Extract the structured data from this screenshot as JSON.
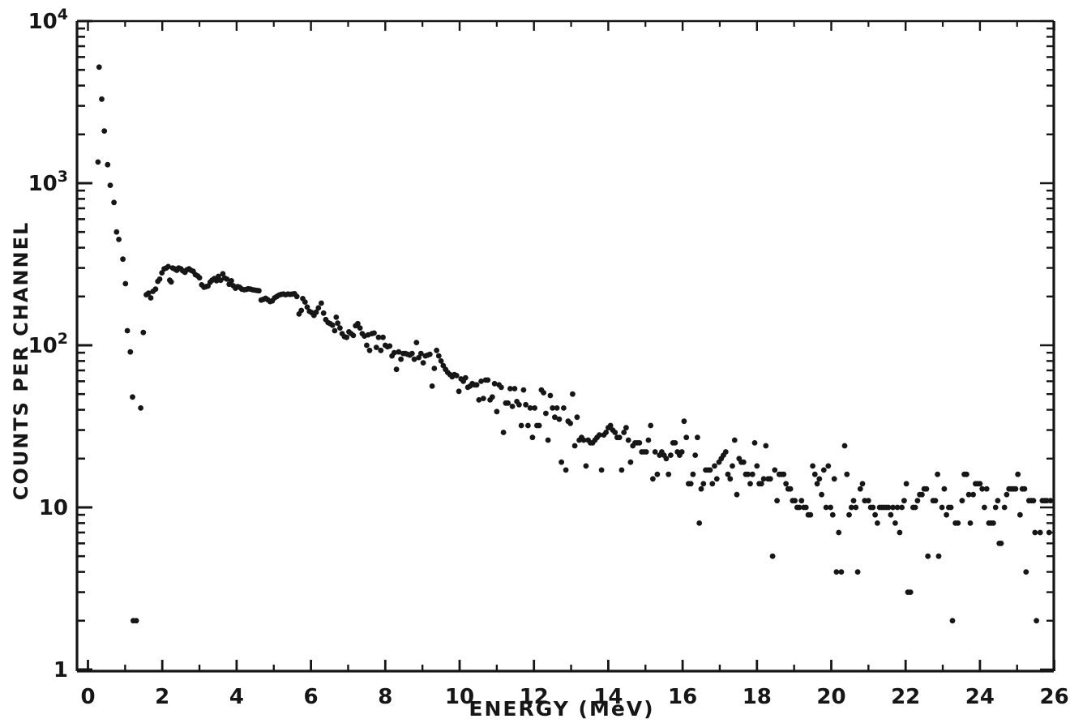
{
  "figure": {
    "background": "#ffffff",
    "ink_color": "#161616"
  },
  "chart_data": {
    "type": "scatter",
    "title": "",
    "xlabel": "ENERGY (MeV)",
    "ylabel": "COUNTS PER CHANNEL",
    "legend": null,
    "grid": false,
    "marker": {
      "shape": "dot",
      "color": "#161616",
      "radius": 3.4
    },
    "x_axis": {
      "min": -0.3,
      "max": 26.1,
      "scale": "linear",
      "major_tick_values": [
        0,
        2,
        4,
        6,
        8,
        10,
        12,
        14,
        16,
        18,
        20,
        22,
        24,
        26
      ],
      "major_tick_labels": [
        "0",
        "2",
        "4",
        "6",
        "8",
        "10",
        "12",
        "14",
        "16",
        "18",
        "20",
        "22",
        "24",
        "26"
      ],
      "minor_tick_values": [
        1,
        3,
        5,
        7,
        9,
        11,
        13,
        15,
        17,
        19,
        21,
        23,
        25
      ]
    },
    "y_axis": {
      "min": 1,
      "max": 10000,
      "scale": "log",
      "major_ticks": [
        {
          "value": 1,
          "base": "1",
          "exponent": ""
        },
        {
          "value": 10,
          "base": "10",
          "exponent": ""
        },
        {
          "value": 100,
          "base": "10",
          "exponent": "2"
        },
        {
          "value": 1000,
          "base": "10",
          "exponent": "3"
        },
        {
          "value": 10000,
          "base": "10",
          "exponent": "4"
        }
      ],
      "minor_mantissas": [
        2,
        3,
        4,
        5,
        6,
        7,
        8,
        9
      ]
    },
    "points": [
      [
        0.27,
        1350
      ],
      [
        0.3,
        5200
      ],
      [
        0.37,
        3300
      ],
      [
        0.44,
        2100
      ],
      [
        0.53,
        1300
      ],
      [
        0.6,
        970
      ],
      [
        0.7,
        760
      ],
      [
        0.77,
        500
      ],
      [
        0.83,
        450
      ],
      [
        0.94,
        340
      ],
      [
        1.01,
        240
      ],
      [
        1.06,
        123
      ],
      [
        1.14,
        91
      ],
      [
        1.2,
        48
      ],
      [
        1.22,
        2
      ],
      [
        1.3,
        2
      ],
      [
        1.42,
        41
      ],
      [
        1.49,
        120
      ],
      [
        1.57,
        205
      ],
      [
        1.63,
        210
      ],
      [
        1.69,
        196
      ],
      [
        1.75,
        215
      ],
      [
        1.82,
        222
      ],
      [
        1.88,
        248
      ],
      [
        1.93,
        256
      ],
      [
        1.99,
        280
      ],
      [
        2.05,
        296
      ],
      [
        2.11,
        300
      ],
      [
        2.16,
        306
      ],
      [
        2.2,
        252
      ],
      [
        2.24,
        246
      ],
      [
        2.28,
        300
      ],
      [
        2.33,
        296
      ],
      [
        2.39,
        290
      ],
      [
        2.44,
        300
      ],
      [
        2.5,
        296
      ],
      [
        2.55,
        288
      ],
      [
        2.61,
        282
      ],
      [
        2.66,
        292
      ],
      [
        2.72,
        296
      ],
      [
        2.77,
        290
      ],
      [
        2.83,
        286
      ],
      [
        2.89,
        273
      ],
      [
        2.95,
        268
      ],
      [
        3.0,
        261
      ],
      [
        3.06,
        236
      ],
      [
        3.12,
        228
      ],
      [
        3.17,
        230
      ],
      [
        3.23,
        232
      ],
      [
        3.29,
        245
      ],
      [
        3.34,
        252
      ],
      [
        3.4,
        258
      ],
      [
        3.46,
        250
      ],
      [
        3.51,
        266
      ],
      [
        3.57,
        252
      ],
      [
        3.63,
        276
      ],
      [
        3.68,
        260
      ],
      [
        3.74,
        256
      ],
      [
        3.8,
        238
      ],
      [
        3.86,
        250
      ],
      [
        3.91,
        233
      ],
      [
        3.97,
        225
      ],
      [
        4.03,
        230
      ],
      [
        4.08,
        228
      ],
      [
        4.14,
        222
      ],
      [
        4.2,
        220
      ],
      [
        4.26,
        221
      ],
      [
        4.31,
        223
      ],
      [
        4.37,
        222
      ],
      [
        4.43,
        220
      ],
      [
        4.48,
        219
      ],
      [
        4.54,
        218
      ],
      [
        4.6,
        217
      ],
      [
        4.66,
        190
      ],
      [
        4.72,
        192
      ],
      [
        4.78,
        195
      ],
      [
        4.84,
        191
      ],
      [
        4.9,
        186
      ],
      [
        4.96,
        188
      ],
      [
        5.02,
        196
      ],
      [
        5.08,
        200
      ],
      [
        5.14,
        204
      ],
      [
        5.2,
        206
      ],
      [
        5.26,
        207
      ],
      [
        5.32,
        205
      ],
      [
        5.38,
        207
      ],
      [
        5.44,
        206
      ],
      [
        5.5,
        207
      ],
      [
        5.56,
        208
      ],
      [
        5.62,
        200
      ],
      [
        5.68,
        156
      ],
      [
        5.74,
        164
      ],
      [
        5.78,
        194
      ],
      [
        5.84,
        185
      ],
      [
        5.9,
        172
      ],
      [
        5.96,
        162
      ],
      [
        6.02,
        159
      ],
      [
        6.08,
        153
      ],
      [
        6.14,
        160
      ],
      [
        6.2,
        170
      ],
      [
        6.28,
        182
      ],
      [
        6.34,
        158
      ],
      [
        6.4,
        144
      ],
      [
        6.46,
        138
      ],
      [
        6.52,
        136
      ],
      [
        6.58,
        133
      ],
      [
        6.64,
        123
      ],
      [
        6.68,
        149
      ],
      [
        6.72,
        137
      ],
      [
        6.78,
        128
      ],
      [
        6.84,
        118
      ],
      [
        6.9,
        113
      ],
      [
        6.96,
        112
      ],
      [
        7.02,
        121
      ],
      [
        7.08,
        118
      ],
      [
        7.14,
        115
      ],
      [
        7.2,
        132
      ],
      [
        7.26,
        136
      ],
      [
        7.32,
        128
      ],
      [
        7.38,
        118
      ],
      [
        7.44,
        114
      ],
      [
        7.5,
        100
      ],
      [
        7.54,
        116
      ],
      [
        7.58,
        93
      ],
      [
        7.64,
        118
      ],
      [
        7.7,
        119
      ],
      [
        7.76,
        97
      ],
      [
        7.82,
        112
      ],
      [
        7.88,
        93
      ],
      [
        7.94,
        112
      ],
      [
        8.0,
        100
      ],
      [
        8.06,
        98
      ],
      [
        8.12,
        99
      ],
      [
        8.18,
        86
      ],
      [
        8.24,
        90
      ],
      [
        8.3,
        71
      ],
      [
        8.36,
        91
      ],
      [
        8.42,
        82
      ],
      [
        8.48,
        89
      ],
      [
        8.54,
        89
      ],
      [
        8.6,
        88
      ],
      [
        8.66,
        87
      ],
      [
        8.72,
        89
      ],
      [
        8.78,
        82
      ],
      [
        8.84,
        104
      ],
      [
        8.9,
        84
      ],
      [
        8.96,
        89
      ],
      [
        9.02,
        78
      ],
      [
        9.08,
        86
      ],
      [
        9.14,
        87
      ],
      [
        9.2,
        88
      ],
      [
        9.26,
        56
      ],
      [
        9.32,
        72
      ],
      [
        9.38,
        93
      ],
      [
        9.44,
        86
      ],
      [
        9.5,
        80
      ],
      [
        9.56,
        75
      ],
      [
        9.62,
        71
      ],
      [
        9.68,
        68
      ],
      [
        9.74,
        66
      ],
      [
        9.8,
        64
      ],
      [
        9.86,
        66
      ],
      [
        9.92,
        65
      ],
      [
        9.98,
        52
      ],
      [
        10.04,
        62
      ],
      [
        10.1,
        60
      ],
      [
        10.16,
        63
      ],
      [
        10.22,
        55
      ],
      [
        10.28,
        56
      ],
      [
        10.34,
        58
      ],
      [
        10.4,
        57
      ],
      [
        10.46,
        57
      ],
      [
        10.52,
        46
      ],
      [
        10.58,
        60
      ],
      [
        10.64,
        47
      ],
      [
        10.7,
        61
      ],
      [
        10.76,
        61
      ],
      [
        10.82,
        46
      ],
      [
        10.88,
        48
      ],
      [
        10.94,
        58
      ],
      [
        11.0,
        39
      ],
      [
        11.06,
        57
      ],
      [
        11.12,
        55
      ],
      [
        11.18,
        29
      ],
      [
        11.24,
        44
      ],
      [
        11.3,
        44
      ],
      [
        11.36,
        54
      ],
      [
        11.42,
        42
      ],
      [
        11.48,
        54
      ],
      [
        11.54,
        45
      ],
      [
        11.6,
        43
      ],
      [
        11.66,
        32
      ],
      [
        11.72,
        53
      ],
      [
        11.78,
        43
      ],
      [
        11.84,
        32
      ],
      [
        11.9,
        41
      ],
      [
        11.96,
        27
      ],
      [
        12.02,
        41
      ],
      [
        12.08,
        32
      ],
      [
        12.14,
        32
      ],
      [
        12.2,
        53
      ],
      [
        12.26,
        51
      ],
      [
        12.32,
        38
      ],
      [
        12.38,
        26
      ],
      [
        12.44,
        49
      ],
      [
        12.5,
        41
      ],
      [
        12.56,
        36
      ],
      [
        12.62,
        41
      ],
      [
        12.68,
        35
      ],
      [
        12.74,
        19
      ],
      [
        12.8,
        41
      ],
      [
        12.86,
        17
      ],
      [
        12.92,
        34
      ],
      [
        12.98,
        33
      ],
      [
        13.04,
        50
      ],
      [
        13.1,
        24
      ],
      [
        13.16,
        36
      ],
      [
        13.22,
        26
      ],
      [
        13.28,
        27
      ],
      [
        13.34,
        26
      ],
      [
        13.4,
        18
      ],
      [
        13.46,
        26
      ],
      [
        13.52,
        25
      ],
      [
        13.58,
        25
      ],
      [
        13.64,
        26
      ],
      [
        13.7,
        27
      ],
      [
        13.76,
        28
      ],
      [
        13.82,
        17
      ],
      [
        13.88,
        28
      ],
      [
        13.94,
        29
      ],
      [
        14.0,
        31
      ],
      [
        14.06,
        32
      ],
      [
        14.12,
        30
      ],
      [
        14.18,
        29
      ],
      [
        14.24,
        27
      ],
      [
        14.3,
        27
      ],
      [
        14.36,
        17
      ],
      [
        14.42,
        29
      ],
      [
        14.48,
        31
      ],
      [
        14.54,
        26
      ],
      [
        14.6,
        19
      ],
      [
        14.66,
        24
      ],
      [
        14.72,
        25
      ],
      [
        14.78,
        25
      ],
      [
        14.84,
        25
      ],
      [
        14.9,
        22
      ],
      [
        14.96,
        22
      ],
      [
        15.02,
        22
      ],
      [
        15.08,
        26
      ],
      [
        15.14,
        32
      ],
      [
        15.2,
        15
      ],
      [
        15.26,
        22
      ],
      [
        15.32,
        16
      ],
      [
        15.38,
        21
      ],
      [
        15.44,
        22
      ],
      [
        15.5,
        21
      ],
      [
        15.56,
        20
      ],
      [
        15.62,
        16
      ],
      [
        15.68,
        21
      ],
      [
        15.74,
        25
      ],
      [
        15.8,
        25
      ],
      [
        15.86,
        22
      ],
      [
        15.92,
        21
      ],
      [
        15.98,
        22
      ],
      [
        16.04,
        34
      ],
      [
        16.1,
        27
      ],
      [
        16.16,
        14
      ],
      [
        16.22,
        14
      ],
      [
        16.28,
        16
      ],
      [
        16.34,
        21
      ],
      [
        16.4,
        27
      ],
      [
        16.45,
        8
      ],
      [
        16.5,
        13
      ],
      [
        16.56,
        14
      ],
      [
        16.62,
        17
      ],
      [
        16.68,
        17
      ],
      [
        16.74,
        17
      ],
      [
        16.8,
        14
      ],
      [
        16.86,
        18
      ],
      [
        16.92,
        15
      ],
      [
        16.98,
        19
      ],
      [
        17.04,
        20
      ],
      [
        17.1,
        21
      ],
      [
        17.16,
        22
      ],
      [
        17.22,
        16
      ],
      [
        17.28,
        15
      ],
      [
        17.34,
        18
      ],
      [
        17.4,
        26
      ],
      [
        17.46,
        12
      ],
      [
        17.52,
        20
      ],
      [
        17.58,
        19
      ],
      [
        17.64,
        19
      ],
      [
        17.7,
        16
      ],
      [
        17.76,
        16
      ],
      [
        17.82,
        14
      ],
      [
        17.88,
        16
      ],
      [
        17.94,
        25
      ],
      [
        18.0,
        18
      ],
      [
        18.06,
        14
      ],
      [
        18.12,
        14
      ],
      [
        18.18,
        15
      ],
      [
        18.24,
        24
      ],
      [
        18.3,
        15
      ],
      [
        18.36,
        15
      ],
      [
        18.42,
        5
      ],
      [
        18.48,
        17
      ],
      [
        18.54,
        11
      ],
      [
        18.6,
        16
      ],
      [
        18.66,
        16
      ],
      [
        18.72,
        16
      ],
      [
        18.78,
        14
      ],
      [
        18.84,
        13
      ],
      [
        18.9,
        13
      ],
      [
        18.96,
        11
      ],
      [
        19.02,
        11
      ],
      [
        19.08,
        10
      ],
      [
        19.14,
        10
      ],
      [
        19.2,
        11
      ],
      [
        19.26,
        10
      ],
      [
        19.32,
        10
      ],
      [
        19.38,
        9
      ],
      [
        19.44,
        9
      ],
      [
        19.5,
        18
      ],
      [
        19.56,
        16
      ],
      [
        19.62,
        14
      ],
      [
        19.68,
        15
      ],
      [
        19.74,
        12
      ],
      [
        19.8,
        17
      ],
      [
        19.86,
        10
      ],
      [
        19.92,
        18
      ],
      [
        19.98,
        10
      ],
      [
        20.04,
        9
      ],
      [
        20.08,
        15
      ],
      [
        20.14,
        4
      ],
      [
        20.2,
        7
      ],
      [
        20.27,
        4
      ],
      [
        20.36,
        24
      ],
      [
        20.42,
        16
      ],
      [
        20.48,
        9
      ],
      [
        20.54,
        10
      ],
      [
        20.6,
        11
      ],
      [
        20.66,
        10
      ],
      [
        20.71,
        4
      ],
      [
        20.78,
        13
      ],
      [
        20.84,
        14
      ],
      [
        20.9,
        11
      ],
      [
        21.0,
        11
      ],
      [
        21.06,
        10
      ],
      [
        21.12,
        10
      ],
      [
        21.18,
        9
      ],
      [
        21.24,
        8
      ],
      [
        21.3,
        10
      ],
      [
        21.36,
        10
      ],
      [
        21.42,
        10
      ],
      [
        21.48,
        10
      ],
      [
        21.54,
        10
      ],
      [
        21.6,
        9
      ],
      [
        21.66,
        10
      ],
      [
        21.72,
        8
      ],
      [
        21.78,
        10
      ],
      [
        21.84,
        7
      ],
      [
        21.9,
        10
      ],
      [
        21.96,
        11
      ],
      [
        22.02,
        14
      ],
      [
        22.06,
        3
      ],
      [
        22.13,
        3
      ],
      [
        22.2,
        10
      ],
      [
        22.26,
        10
      ],
      [
        22.32,
        11
      ],
      [
        22.38,
        12
      ],
      [
        22.44,
        12
      ],
      [
        22.5,
        13
      ],
      [
        22.56,
        13
      ],
      [
        22.6,
        5
      ],
      [
        22.74,
        11
      ],
      [
        22.8,
        11
      ],
      [
        22.86,
        16
      ],
      [
        22.89,
        5
      ],
      [
        22.98,
        10
      ],
      [
        23.04,
        13
      ],
      [
        23.1,
        9
      ],
      [
        23.16,
        10
      ],
      [
        23.22,
        10
      ],
      [
        23.26,
        2
      ],
      [
        23.34,
        8
      ],
      [
        23.41,
        8
      ],
      [
        23.52,
        11
      ],
      [
        23.58,
        16
      ],
      [
        23.64,
        16
      ],
      [
        23.7,
        12
      ],
      [
        23.74,
        8
      ],
      [
        23.82,
        12
      ],
      [
        23.88,
        14
      ],
      [
        23.94,
        14
      ],
      [
        24.0,
        14
      ],
      [
        24.06,
        13
      ],
      [
        24.12,
        10
      ],
      [
        24.18,
        13
      ],
      [
        24.24,
        8
      ],
      [
        24.3,
        8
      ],
      [
        24.36,
        8
      ],
      [
        24.42,
        10
      ],
      [
        24.48,
        11
      ],
      [
        24.52,
        6
      ],
      [
        24.57,
        6
      ],
      [
        24.66,
        10
      ],
      [
        24.72,
        12
      ],
      [
        24.78,
        13
      ],
      [
        24.84,
        13
      ],
      [
        24.9,
        13
      ],
      [
        24.96,
        13
      ],
      [
        25.02,
        16
      ],
      [
        25.08,
        9
      ],
      [
        25.14,
        13
      ],
      [
        25.2,
        13
      ],
      [
        25.24,
        4
      ],
      [
        25.32,
        11
      ],
      [
        25.38,
        11
      ],
      [
        25.44,
        11
      ],
      [
        25.48,
        7
      ],
      [
        25.52,
        2
      ],
      [
        25.62,
        7
      ],
      [
        25.68,
        11
      ],
      [
        25.74,
        11
      ],
      [
        25.8,
        11
      ],
      [
        25.86,
        7
      ],
      [
        25.9,
        11
      ]
    ]
  }
}
